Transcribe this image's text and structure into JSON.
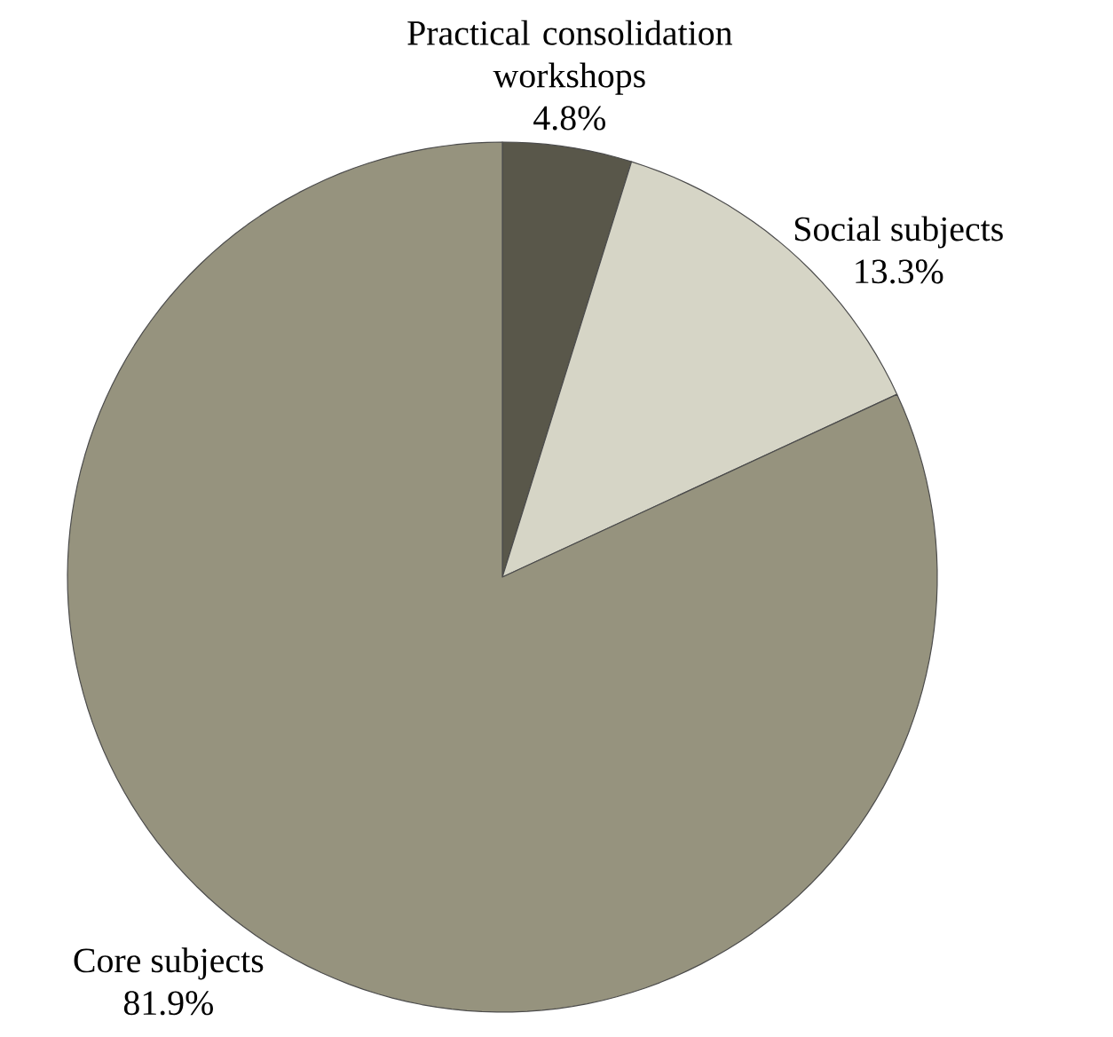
{
  "chart_data": {
    "type": "pie",
    "categories": [
      "Practical consolidation workshops",
      "Social subjects",
      "Core subjects"
    ],
    "values": [
      4.8,
      13.3,
      81.9
    ],
    "value_labels": [
      "4.8%",
      "13.3%",
      "81.9%"
    ],
    "colors": [
      "#59574a",
      "#d6d5c6",
      "#96937e"
    ]
  }
}
